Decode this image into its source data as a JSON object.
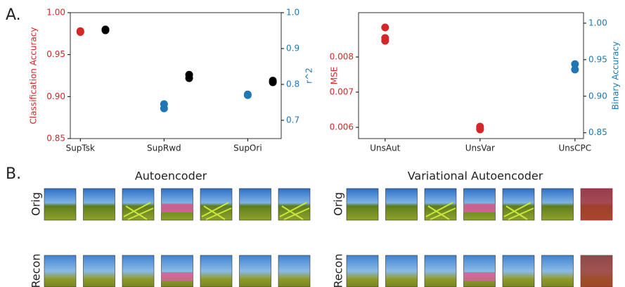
{
  "chart_data": [
    {
      "type": "scatter",
      "ylabel": "Classification Accuracy",
      "y2label": "r^2",
      "ycolor": "#d62728",
      "y2color": "#1f77b4",
      "xlim": [
        -0.12,
        2.4
      ],
      "xticks": [
        {
          "value": 0,
          "label": "SupTsk"
        },
        {
          "value": 1,
          "label": "SupRwd"
        },
        {
          "value": 2,
          "label": "SupOri"
        }
      ],
      "ylim": [
        0.85,
        1.0
      ],
      "yticks": [
        {
          "value": 0.85,
          "label": "0.85"
        },
        {
          "value": 0.9,
          "label": "0.90"
        },
        {
          "value": 0.95,
          "label": "0.95"
        },
        {
          "value": 1.0,
          "label": "1.00"
        }
      ],
      "y2lim": [
        0.649,
        1.0
      ],
      "y2ticks": [
        0.7,
        0.8,
        0.9,
        {
          "value": 1.0,
          "label": "1.0"
        }
      ],
      "series": [
        {
          "color": "#d62728",
          "x": [
            0,
            0
          ],
          "values": [
            0.978,
            0.977
          ]
        },
        {
          "color": "#000000",
          "x": [
            0.3,
            0.3,
            1.3,
            1.3,
            2.3,
            2.3
          ],
          "values": [
            0.98,
            0.979,
            0.926,
            0.922,
            0.919,
            0.917
          ]
        },
        {
          "color": "#1f77b4",
          "axis": "y2",
          "x": [
            1,
            1,
            2,
            2
          ],
          "values": [
            0.745,
            0.733,
            0.772,
            0.77
          ]
        }
      ]
    },
    {
      "type": "scatter",
      "ylabel": "MSE",
      "y2label": "Binary Accuracy",
      "ycolor": "#d62728",
      "y2color": "#1f77b4",
      "xlim": [
        -0.28,
        2.09
      ],
      "xticks": [
        {
          "value": 0,
          "label": "UnsAut"
        },
        {
          "value": 1,
          "label": "UnsVar"
        },
        {
          "value": 2,
          "label": "UnsCPC"
        }
      ],
      "ylim": [
        0.00568,
        0.00926
      ],
      "yticks": [
        0.006,
        0.007,
        0.008
      ],
      "y2lim": [
        0.842,
        1.0144
      ],
      "y2ticks": [
        {
          "value": 0.85,
          "label": "0.85"
        },
        {
          "value": 0.9,
          "label": "0.90"
        },
        {
          "value": 0.95,
          "label": "0.95"
        },
        {
          "value": 1.0,
          "label": "1.00"
        }
      ],
      "series": [
        {
          "color": "#d62728",
          "x": [
            0,
            0,
            0,
            1,
            1,
            1
          ],
          "values": [
            0.00884,
            0.00854,
            0.00846,
            0.00602,
            0.00596,
            0.00594
          ]
        },
        {
          "color": "#1f77b4",
          "axis": "y2",
          "x": [
            2,
            2
          ],
          "values": [
            0.944,
            0.9365
          ]
        }
      ]
    }
  ],
  "panel_a": {
    "label": "A."
  },
  "panel_b": {
    "label": "B.",
    "groups": [
      {
        "title": "Autoencoder",
        "rows": [
          "Orig",
          "Recon"
        ]
      },
      {
        "title": "Variational Autoencoder",
        "rows": [
          "Orig",
          "Recon"
        ]
      }
    ]
  }
}
